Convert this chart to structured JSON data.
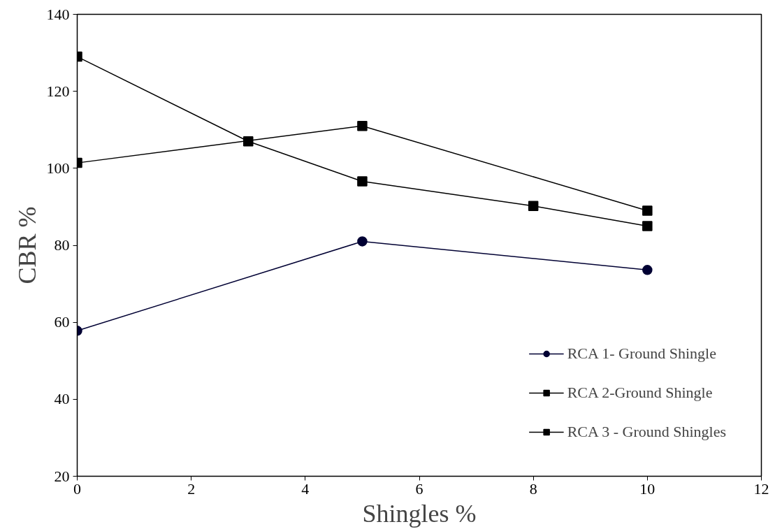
{
  "chart_data": {
    "type": "line",
    "xlabel": "Shingles %",
    "ylabel": "CBR %",
    "xlim": [
      0,
      12
    ],
    "xticks": [
      0,
      2,
      4,
      6,
      8,
      10,
      12
    ],
    "ylim": [
      20,
      140
    ],
    "yticks": [
      20,
      40,
      60,
      80,
      100,
      120,
      140
    ],
    "grid": false,
    "legend": "bottom right",
    "line_style": "solid",
    "series": [
      {
        "name": "RCA 1- Ground Shingle",
        "color": "#000033",
        "marker": "circle",
        "x": [
          0,
          5,
          10
        ],
        "values": [
          57.8,
          81,
          73.6
        ]
      },
      {
        "name": "RCA 2-Ground Shingle",
        "color": "#000000",
        "marker": "square",
        "x": [
          0,
          5,
          10
        ],
        "values": [
          101.4,
          111,
          89
        ]
      },
      {
        "name": "RCA 3 - Ground Shingles",
        "color": "#000000",
        "marker": "square",
        "x": [
          0,
          3,
          5,
          8,
          10
        ],
        "values": [
          129,
          107,
          96.6,
          90.2,
          85
        ]
      }
    ]
  }
}
